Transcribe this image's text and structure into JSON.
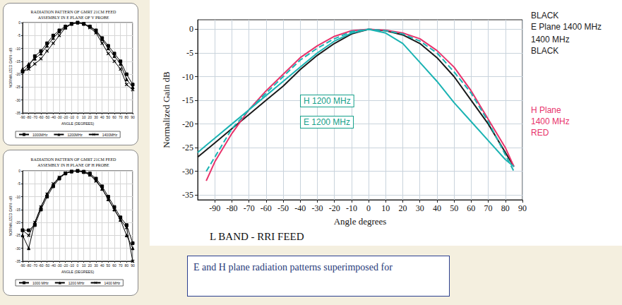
{
  "caption": "E and H plane radiation patterns superimposed for",
  "chart_data": [
    {
      "type": "line",
      "title": "RADIATION PATTERN OF GMRT 21CM FEED",
      "subtitle": "ASSEMBLY IN E PLANE OF V PROBE",
      "xlabel": "ANGLE (DEGREES)",
      "ylabel": "NORMALIZED GAIN - dB",
      "x": [
        -90,
        -80,
        -70,
        -60,
        -50,
        -40,
        -30,
        -20,
        -10,
        0,
        10,
        20,
        30,
        40,
        50,
        60,
        70,
        80,
        90
      ],
      "xlim": [
        -90,
        90
      ],
      "xticks": [
        -90,
        -80,
        -70,
        -60,
        -50,
        -40,
        -30,
        -20,
        -10,
        0,
        10,
        20,
        30,
        40,
        50,
        60,
        70,
        80,
        90
      ],
      "ylim": [
        -35,
        0
      ],
      "yticks": [
        -35,
        -30,
        -25,
        -20,
        -15,
        -10,
        -5,
        0
      ],
      "grid": true,
      "legend": "bottom",
      "series": [
        {
          "name": "1000MHz",
          "color": "#000000",
          "marker": "square",
          "values": [
            -19,
            -17,
            -13,
            -11,
            -8,
            -5,
            -3,
            -1.5,
            -0.5,
            0,
            -0.5,
            -1.5,
            -3,
            -6,
            -9,
            -12,
            -15,
            -20,
            -24
          ]
        },
        {
          "name": "1200MHz",
          "color": "#000000",
          "marker": "triangle",
          "values": [
            -18,
            -16,
            -14,
            -12,
            -9,
            -6,
            -3.5,
            -2,
            -0.5,
            0,
            -0.5,
            -1.5,
            -3.5,
            -6.5,
            -10,
            -13,
            -16,
            -22,
            -25
          ]
        },
        {
          "name": "1400MHz",
          "color": "#000000",
          "marker": "x",
          "values": [
            -19,
            -18,
            -16,
            -14,
            -11,
            -8,
            -5,
            -2,
            -0.5,
            0,
            -0.5,
            -2,
            -4,
            -8,
            -12,
            -15,
            -18,
            -24,
            -26
          ]
        }
      ]
    },
    {
      "type": "line",
      "title": "RADIATION PATTERN OF GMRT 21CM FEED",
      "subtitle": "ASSEMBLY IN H PLANE OF H PROBE",
      "xlabel": "ANGLE (DEGREES)",
      "ylabel": "NORMALIZED GAIN - dB",
      "x": [
        -90,
        -80,
        -70,
        -60,
        -50,
        -40,
        -30,
        -20,
        -10,
        0,
        10,
        20,
        30,
        40,
        50,
        60,
        70,
        80,
        90
      ],
      "xlim": [
        -90,
        90
      ],
      "xticks": [
        -90,
        -80,
        -70,
        -60,
        -50,
        -40,
        -30,
        -20,
        -10,
        0,
        10,
        20,
        30,
        40,
        50,
        60,
        70,
        80,
        90
      ],
      "ylim": [
        -35,
        0
      ],
      "yticks": [
        -35,
        -30,
        -25,
        -20,
        -15,
        -10,
        -5,
        0
      ],
      "grid": true,
      "legend": "bottom",
      "series": [
        {
          "name": "1000 MHz",
          "color": "#000000",
          "marker": "square",
          "values": [
            -23,
            -23,
            -21,
            -15,
            -10,
            -6,
            -3,
            -1,
            -0.3,
            0,
            -0.3,
            -1,
            -3,
            -6,
            -10,
            -14,
            -18,
            -21,
            -28
          ]
        },
        {
          "name": "1200 MHz",
          "color": "#000000",
          "marker": "triangle",
          "values": [
            -25,
            -30,
            -20,
            -14,
            -9,
            -5.5,
            -2.5,
            -1,
            -0.2,
            0,
            -0.5,
            -1.5,
            -3.5,
            -7,
            -11,
            -15,
            -19,
            -25,
            -30
          ]
        },
        {
          "name": "1400 MHz",
          "color": "#000000",
          "marker": "x",
          "values": [
            -23,
            -25,
            -20,
            -14,
            -9,
            -5,
            -2.5,
            -0.8,
            -0.2,
            0,
            -0.5,
            -1.5,
            -4,
            -7,
            -11,
            -15,
            -19,
            -22,
            -35
          ]
        }
      ]
    },
    {
      "type": "line",
      "title": "L BAND - RRI FEED",
      "xlabel": "Angle degrees",
      "ylabel": "Normalized Gain dB",
      "x": [
        -100,
        -95,
        -90,
        -80,
        -70,
        -60,
        -50,
        -40,
        -30,
        -20,
        -10,
        0,
        10,
        20,
        30,
        40,
        50,
        60,
        70,
        80,
        85
      ],
      "xlim": [
        -100,
        90
      ],
      "xticks": [
        -90,
        -80,
        -70,
        -60,
        -50,
        -40,
        -30,
        -20,
        -10,
        0,
        10,
        20,
        30,
        40,
        50,
        60,
        70,
        80,
        90
      ],
      "ylim": [
        -36,
        2
      ],
      "yticks": [
        -35,
        -30,
        -25,
        -20,
        -15,
        -10,
        -5,
        0
      ],
      "grid": true,
      "annotations": [
        {
          "text": "BLACK",
          "color": "#1a1a1a"
        },
        {
          "text": "E Plane 1400 MHz",
          "color": "#1a1a1a"
        },
        {
          "text": "1400 MHz",
          "color": "#1a1a1a"
        },
        {
          "text": "BLACK",
          "color": "#1a1a1a"
        },
        {
          "text": "H 1200 MHz",
          "color": "#14a08a"
        },
        {
          "text": "E 1200 MHz",
          "color": "#14a08a"
        },
        {
          "text": "H Plane",
          "color": "#e8336b"
        },
        {
          "text": "1400 MHz",
          "color": "#e8336b"
        },
        {
          "text": "RED",
          "color": "#e8336b"
        }
      ],
      "series": [
        {
          "color": "#1a1a1a",
          "marker": "none",
          "line_style": "solid",
          "values": [
            -27,
            -25.5,
            -24,
            -21,
            -18,
            -15,
            -12,
            -8.5,
            -5.5,
            -3,
            -1,
            0,
            -0.3,
            -1.2,
            -3,
            -6,
            -10,
            -15,
            -20,
            -26,
            -29
          ]
        },
        {
          "color": "#e8336b",
          "marker": "none",
          "line_style": "solid",
          "values": [
            null,
            -32,
            -28,
            -22,
            -17,
            -13,
            -9.5,
            -6,
            -3.5,
            -1.5,
            -0.3,
            0,
            -0.2,
            -0.8,
            -2,
            -4.5,
            -8,
            -13,
            -19,
            -25,
            -29
          ]
        },
        {
          "color": "#1bb3b3",
          "marker": "none",
          "line_style": "solid",
          "values": [
            -26,
            -24.5,
            -23,
            -20,
            -17,
            -14,
            -11,
            -8,
            -5,
            -2.5,
            -0.8,
            0,
            -0.8,
            -3,
            -7,
            -11,
            -15.5,
            -19.5,
            -23.5,
            -27.5,
            -29
          ]
        },
        {
          "color": "#1bb3b3",
          "marker": "none",
          "line_style": "dashed",
          "values": [
            null,
            -30,
            -27,
            -21,
            -17,
            -13.5,
            -10,
            -6.5,
            -4,
            -2,
            -0.5,
            0,
            -0.3,
            -1,
            -2.5,
            -5,
            -9,
            -13.5,
            -19.5,
            -26.5,
            -30
          ]
        }
      ]
    }
  ]
}
